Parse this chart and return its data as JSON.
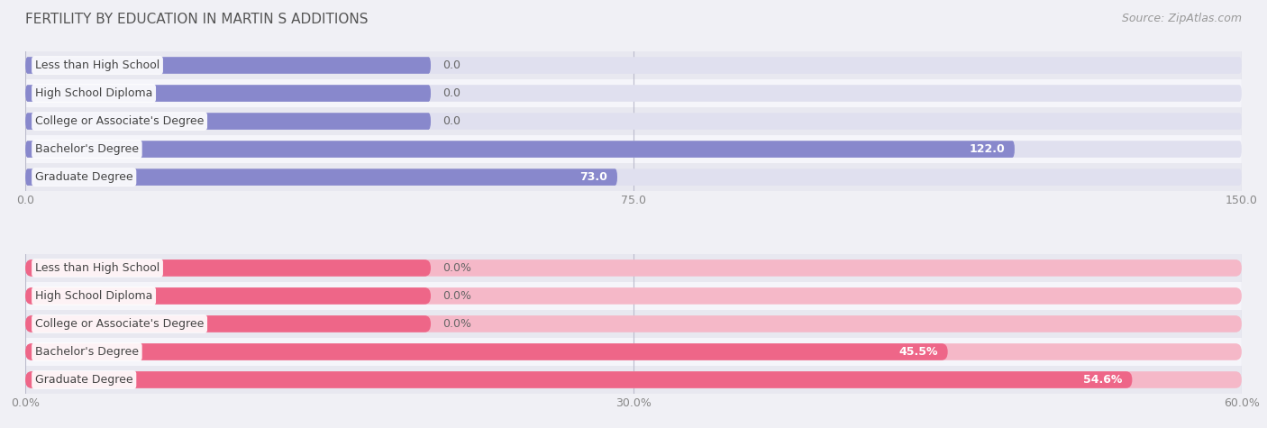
{
  "title": "FERTILITY BY EDUCATION IN MARTIN S ADDITIONS",
  "source": "Source: ZipAtlas.com",
  "top_chart": {
    "categories": [
      "Less than High School",
      "High School Diploma",
      "College or Associate's Degree",
      "Bachelor's Degree",
      "Graduate Degree"
    ],
    "values": [
      0.0,
      0.0,
      0.0,
      122.0,
      73.0
    ],
    "bar_color": "#8888cc",
    "bar_bg_color": "#e0e0ef",
    "xlim": [
      0,
      150
    ],
    "xticks": [
      0.0,
      75.0,
      150.0
    ],
    "xtick_labels": [
      "0.0",
      "75.0",
      "150.0"
    ],
    "value_labels": [
      "0.0",
      "0.0",
      "0.0",
      "122.0",
      "73.0"
    ],
    "zero_bar_width": 50
  },
  "bottom_chart": {
    "categories": [
      "Less than High School",
      "High School Diploma",
      "College or Associate's Degree",
      "Bachelor's Degree",
      "Graduate Degree"
    ],
    "values": [
      0.0,
      0.0,
      0.0,
      45.5,
      54.6
    ],
    "bar_color": "#ee6688",
    "bar_bg_color": "#f5b8c8",
    "xlim": [
      0,
      60
    ],
    "xticks": [
      0.0,
      30.0,
      60.0
    ],
    "xtick_labels": [
      "0.0%",
      "30.0%",
      "60.0%"
    ],
    "value_labels": [
      "0.0%",
      "0.0%",
      "0.0%",
      "45.5%",
      "54.6%"
    ],
    "zero_bar_width": 20
  },
  "background_color": "#f0f0f5",
  "row_even_color": "#e8e8f0",
  "row_odd_color": "#f5f5fa",
  "title_fontsize": 11,
  "tick_fontsize": 9,
  "source_fontsize": 9,
  "bar_height": 0.6,
  "label_fontsize": 9
}
